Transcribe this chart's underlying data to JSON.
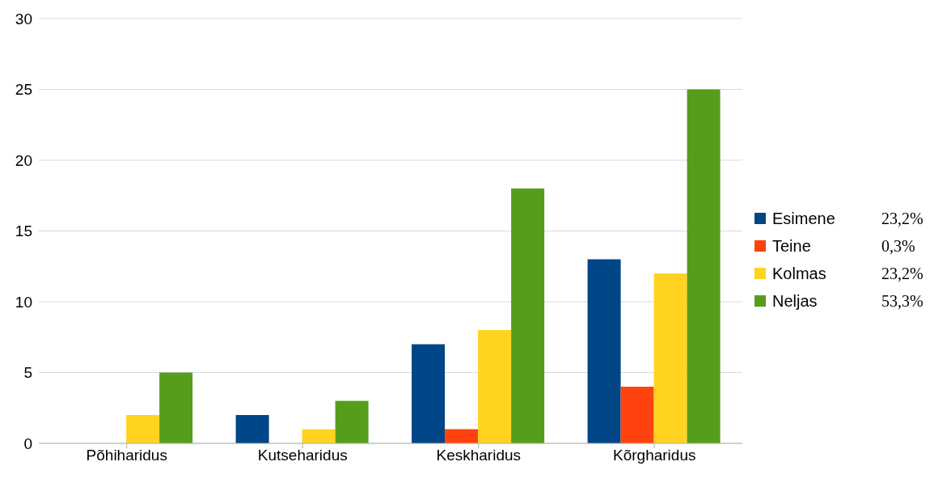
{
  "chart_data": {
    "type": "bar",
    "categories": [
      "Põhiharidus",
      "Kutseharidus",
      "Keskharidus",
      "Kõrgharidus"
    ],
    "series": [
      {
        "name": "Esimene",
        "color": "#004586",
        "values": [
          0,
          2,
          7,
          13
        ]
      },
      {
        "name": "Teine",
        "color": "#ff420e",
        "values": [
          0,
          0,
          1,
          4
        ]
      },
      {
        "name": "Kolmas",
        "color": "#ffd320",
        "values": [
          2,
          1,
          8,
          12
        ]
      },
      {
        "name": "Neljas",
        "color": "#579d1c",
        "values": [
          5,
          3,
          18,
          25
        ]
      }
    ],
    "ylim": [
      0,
      30
    ],
    "yticks": [
      0,
      5,
      10,
      15,
      20,
      25,
      30
    ],
    "grid": "y",
    "legend": "right",
    "annotations": [
      "23,2%",
      "0,3%",
      "23,2%",
      "53,3%"
    ]
  }
}
